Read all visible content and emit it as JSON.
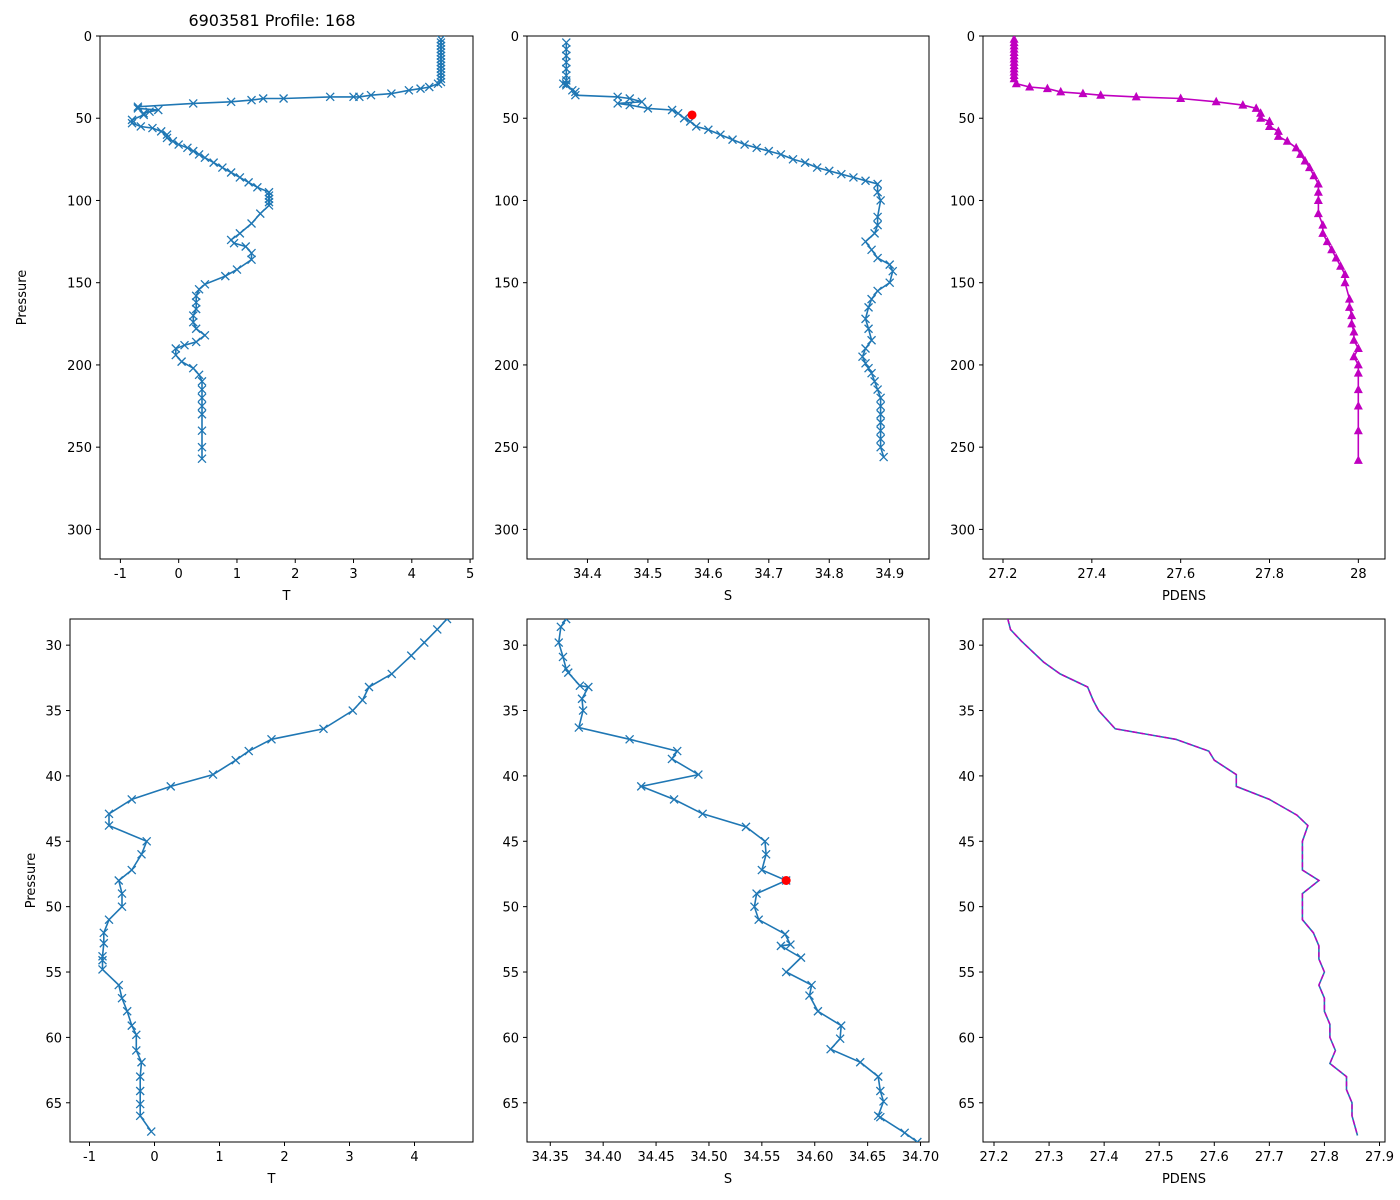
{
  "figure_title": "6903581 Profile: 168",
  "chart_data": [
    {
      "panel": "top-left",
      "type": "line",
      "marker": "x",
      "color": "#1f77b4",
      "xlabel": "T",
      "ylabel": "Pressure",
      "title": "6903581 Profile: 168",
      "xlim": [
        -1.35,
        5.05
      ],
      "ylim": [
        318,
        0
      ],
      "y_inverted": true,
      "xticks": [
        -1,
        0,
        1,
        2,
        3,
        4,
        5
      ],
      "yticks": [
        0,
        50,
        100,
        150,
        200,
        250,
        300
      ],
      "series": [
        {
          "name": "T",
          "x": [
            4.5,
            4.5,
            4.5,
            4.5,
            4.5,
            4.5,
            4.5,
            4.5,
            4.5,
            4.5,
            4.5,
            4.5,
            4.5,
            4.5,
            4.45,
            4.3,
            4.15,
            3.95,
            3.65,
            3.3,
            3.1,
            3.0,
            2.6,
            1.8,
            1.45,
            1.25,
            0.9,
            0.25,
            -0.7,
            -0.7,
            -0.35,
            -0.5,
            -0.6,
            -0.6,
            -0.8,
            -0.8,
            -0.65,
            -0.45,
            -0.3,
            -0.2,
            -0.2,
            -0.1,
            0.0,
            0.15,
            0.25,
            0.35,
            0.45,
            0.6,
            0.75,
            0.9,
            1.05,
            1.2,
            1.35,
            1.55,
            1.55,
            1.55,
            1.55,
            1.55,
            1.4,
            1.25,
            1.05,
            0.9,
            0.95,
            1.15,
            1.25,
            1.25,
            1.0,
            0.8,
            0.45,
            0.35,
            0.3,
            0.3,
            0.3,
            0.25,
            0.25,
            0.3,
            0.45,
            0.3,
            0.1,
            -0.05,
            -0.05,
            0.05,
            0.25,
            0.35,
            0.4,
            0.4,
            0.4,
            0.4,
            0.4,
            0.4,
            0.4,
            0.4
          ],
          "y": [
            2,
            4,
            6,
            8,
            10,
            12,
            14,
            16,
            18,
            20,
            22,
            24,
            26,
            28,
            29,
            31,
            32,
            33,
            35,
            36,
            37,
            37,
            37,
            38,
            38,
            39,
            40,
            41,
            43,
            44,
            45,
            46,
            47,
            48,
            51,
            53,
            55,
            56,
            58,
            60,
            62,
            64,
            66,
            68,
            70,
            72,
            74,
            77,
            80,
            83,
            86,
            89,
            92,
            95,
            97,
            99,
            101,
            103,
            108,
            114,
            120,
            124,
            126,
            128,
            132,
            136,
            142,
            146,
            151,
            154,
            158,
            162,
            166,
            170,
            174,
            178,
            182,
            186,
            188,
            190,
            194,
            198,
            202,
            206,
            210,
            215,
            220,
            225,
            230,
            240,
            250,
            257
          ]
        }
      ]
    },
    {
      "panel": "top-middle",
      "type": "line",
      "marker": "x",
      "color": "#1f77b4",
      "xlabel": "S",
      "ylabel": "",
      "xlim": [
        34.3,
        34.965
      ],
      "ylim": [
        318,
        0
      ],
      "y_inverted": true,
      "xticks": [
        34.4,
        34.5,
        34.6,
        34.7,
        34.8,
        34.9
      ],
      "yticks": [
        0,
        50,
        100,
        150,
        200,
        250,
        300
      ],
      "series": [
        {
          "name": "S",
          "x": [
            34.365,
            34.365,
            34.365,
            34.365,
            34.365,
            34.365,
            34.365,
            34.365,
            34.36,
            34.365,
            34.375,
            34.38,
            34.38,
            34.45,
            34.47,
            34.49,
            34.45,
            34.47,
            34.5,
            34.54,
            34.55,
            34.56,
            34.57,
            34.58,
            34.6,
            34.62,
            34.64,
            34.66,
            34.68,
            34.7,
            34.72,
            34.74,
            34.76,
            34.78,
            34.8,
            34.82,
            34.84,
            34.86,
            34.88,
            34.88,
            34.885,
            34.88,
            34.88,
            34.875,
            34.86,
            34.87,
            34.88,
            34.9,
            34.905,
            34.9,
            34.88,
            34.87,
            34.865,
            34.86,
            34.865,
            34.87,
            34.86,
            34.855,
            34.86,
            34.865,
            34.87,
            34.875,
            34.88,
            34.885,
            34.885,
            34.885,
            34.885,
            34.885,
            34.885,
            34.885,
            34.89
          ],
          "y": [
            4,
            8,
            12,
            16,
            20,
            24,
            27,
            29,
            29,
            30,
            33,
            34,
            36,
            37,
            38,
            40,
            41,
            42,
            44,
            45,
            47,
            50,
            52,
            55,
            57,
            60,
            63,
            66,
            68,
            70,
            72,
            75,
            77,
            80,
            82,
            84,
            86,
            88,
            90,
            95,
            100,
            110,
            115,
            120,
            125,
            130,
            135,
            139,
            143,
            150,
            155,
            160,
            165,
            172,
            178,
            185,
            190,
            195,
            199,
            202,
            205,
            210,
            215,
            220,
            225,
            230,
            235,
            240,
            245,
            250,
            256
          ]
        }
      ],
      "highlight": {
        "x": 34.573,
        "y": 48,
        "color": "#ff0000"
      }
    },
    {
      "panel": "top-right",
      "type": "line",
      "marker": "triangle",
      "color": "#c000c0",
      "xlabel": "PDENS",
      "ylabel": "",
      "xlim": [
        27.155,
        28.06
      ],
      "ylim": [
        318,
        0
      ],
      "y_inverted": true,
      "xticks": [
        27.2,
        27.4,
        27.6,
        27.8,
        28.0
      ],
      "yticks": [
        0,
        50,
        100,
        150,
        200,
        250,
        300
      ],
      "series": [
        {
          "name": "PDENS",
          "x": [
            27.225,
            27.225,
            27.225,
            27.225,
            27.225,
            27.225,
            27.225,
            27.225,
            27.225,
            27.225,
            27.225,
            27.225,
            27.225,
            27.23,
            27.26,
            27.3,
            27.33,
            27.38,
            27.42,
            27.5,
            27.6,
            27.68,
            27.74,
            27.77,
            27.78,
            27.78,
            27.8,
            27.8,
            27.82,
            27.82,
            27.84,
            27.86,
            27.87,
            27.88,
            27.89,
            27.9,
            27.91,
            27.91,
            27.91,
            27.91,
            27.92,
            27.92,
            27.93,
            27.94,
            27.95,
            27.96,
            27.97,
            27.97,
            27.98,
            27.98,
            27.985,
            27.985,
            27.99,
            27.99,
            28.0,
            27.99,
            28.0,
            28.0,
            28.0,
            28.0,
            28.0,
            28.0
          ],
          "y": [
            2,
            4,
            6,
            8,
            10,
            12,
            14,
            16,
            18,
            20,
            22,
            24,
            26,
            29,
            31,
            32,
            34,
            35,
            36,
            37,
            38,
            40,
            42,
            44,
            47,
            50,
            52,
            55,
            58,
            61,
            64,
            68,
            72,
            76,
            80,
            85,
            90,
            95,
            100,
            108,
            115,
            120,
            125,
            130,
            135,
            140,
            145,
            150,
            160,
            165,
            170,
            175,
            180,
            185,
            190,
            195,
            200,
            205,
            215,
            225,
            240,
            258
          ]
        }
      ]
    },
    {
      "panel": "bottom-left",
      "type": "line",
      "marker": "x",
      "color": "#1f77b4",
      "xlabel": "T",
      "ylabel": "Pressure",
      "xlim": [
        -1.3,
        4.9
      ],
      "ylim": [
        68,
        28
      ],
      "y_inverted": true,
      "xticks": [
        -1,
        0,
        1,
        2,
        3,
        4
      ],
      "yticks": [
        30,
        35,
        40,
        45,
        50,
        55,
        60,
        65
      ],
      "series": [
        {
          "name": "T",
          "x": [
            4.5,
            4.35,
            4.15,
            3.95,
            3.65,
            3.3,
            3.2,
            3.05,
            2.6,
            1.8,
            1.45,
            1.25,
            0.9,
            0.25,
            -0.35,
            -0.7,
            -0.7,
            -0.12,
            -0.2,
            -0.35,
            -0.55,
            -0.5,
            -0.5,
            -0.7,
            -0.78,
            -0.78,
            -0.8,
            -0.8,
            -0.8,
            -0.55,
            -0.5,
            -0.42,
            -0.35,
            -0.28,
            -0.28,
            -0.2,
            -0.22,
            -0.22,
            -0.22,
            -0.22,
            -0.05
          ],
          "y": [
            28,
            28.8,
            29.8,
            30.8,
            32.2,
            33.2,
            34.2,
            35.0,
            36.4,
            37.2,
            38.1,
            38.8,
            39.9,
            40.8,
            41.8,
            42.9,
            43.8,
            45.0,
            46.0,
            47.2,
            48.0,
            49.0,
            50.0,
            51.0,
            52.0,
            52.8,
            53.8,
            54.1,
            54.8,
            56.0,
            57.0,
            58.0,
            59.1,
            59.8,
            61.0,
            61.9,
            63.0,
            64.1,
            65.1,
            66.0,
            67.2
          ]
        }
      ]
    },
    {
      "panel": "bottom-middle",
      "type": "line",
      "marker": "x",
      "color": "#1f77b4",
      "xlabel": "S",
      "ylabel": "",
      "xlim": [
        34.328,
        34.708
      ],
      "ylim": [
        68,
        28
      ],
      "y_inverted": true,
      "xticks": [
        34.35,
        34.4,
        34.45,
        34.5,
        34.55,
        34.6,
        34.65,
        34.7
      ],
      "xtick_labels": [
        "34.35",
        "34.40",
        "34.45",
        "34.50",
        "34.55",
        "34.60",
        "34.65",
        "34.70"
      ],
      "yticks": [
        30,
        35,
        40,
        45,
        50,
        55,
        60,
        65
      ],
      "series": [
        {
          "name": "S",
          "x": [
            34.365,
            34.36,
            34.358,
            34.362,
            34.365,
            34.367,
            34.378,
            34.386,
            34.38,
            34.381,
            34.377,
            34.425,
            34.47,
            34.465,
            34.49,
            34.436,
            34.467,
            34.494,
            34.535,
            34.553,
            34.554,
            34.55,
            34.573,
            34.545,
            34.543,
            34.547,
            34.572,
            34.577,
            34.568,
            34.587,
            34.573,
            34.597,
            34.595,
            34.603,
            34.625,
            34.624,
            34.615,
            34.643,
            34.66,
            34.662,
            34.665,
            34.66,
            34.662,
            34.685,
            34.697
          ],
          "y": [
            28,
            28.6,
            29.8,
            30.9,
            31.8,
            32.1,
            33.1,
            33.2,
            34.1,
            35,
            36.3,
            37.2,
            38.1,
            38.7,
            39.9,
            40.8,
            41.8,
            42.9,
            43.9,
            45,
            46,
            47.2,
            48,
            49,
            50,
            51,
            52.1,
            52.9,
            53,
            53.9,
            55,
            56,
            56.8,
            58,
            59.1,
            60.1,
            60.9,
            61.9,
            63,
            64.1,
            64.9,
            66,
            66.1,
            67.3,
            68
          ]
        }
      ],
      "highlight": {
        "x": 34.573,
        "y": 48,
        "color": "#ff0000"
      }
    },
    {
      "panel": "bottom-right",
      "type": "line",
      "marker": "none",
      "color": "#1f77b4",
      "overlay_color": "#c000c0",
      "xlabel": "PDENS",
      "ylabel": "",
      "xlim": [
        27.18,
        27.91
      ],
      "ylim": [
        68,
        28
      ],
      "y_inverted": true,
      "xticks": [
        27.2,
        27.3,
        27.4,
        27.5,
        27.6,
        27.7,
        27.8,
        27.9
      ],
      "yticks": [
        30,
        35,
        40,
        45,
        50,
        55,
        60,
        65
      ],
      "series": [
        {
          "name": "PDENS",
          "x": [
            27.225,
            27.23,
            27.25,
            27.27,
            27.29,
            27.32,
            27.37,
            27.38,
            27.39,
            27.42,
            27.53,
            27.59,
            27.6,
            27.64,
            27.64,
            27.7,
            27.75,
            27.77,
            27.76,
            27.76,
            27.76,
            27.79,
            27.76,
            27.76,
            27.76,
            27.78,
            27.79,
            27.79,
            27.8,
            27.79,
            27.8,
            27.8,
            27.81,
            27.81,
            27.82,
            27.81,
            27.84,
            27.84,
            27.85,
            27.85,
            27.86
          ],
          "y": [
            28,
            28.8,
            29.7,
            30.5,
            31.3,
            32.2,
            33.2,
            34.2,
            35.0,
            36.4,
            37.2,
            38.1,
            38.8,
            39.9,
            40.8,
            41.8,
            43.0,
            43.8,
            45.0,
            46.0,
            47.2,
            48.0,
            49.0,
            50.0,
            51.0,
            52.0,
            53.0,
            54.0,
            55.0,
            56.0,
            57.0,
            58.0,
            59.0,
            60.0,
            61.0,
            62.0,
            63.0,
            64.0,
            65.0,
            66.0,
            67.5
          ]
        }
      ],
      "overlay": {
        "x_shift": 0.0,
        "note": "dashed magenta overlay on same values"
      }
    }
  ]
}
